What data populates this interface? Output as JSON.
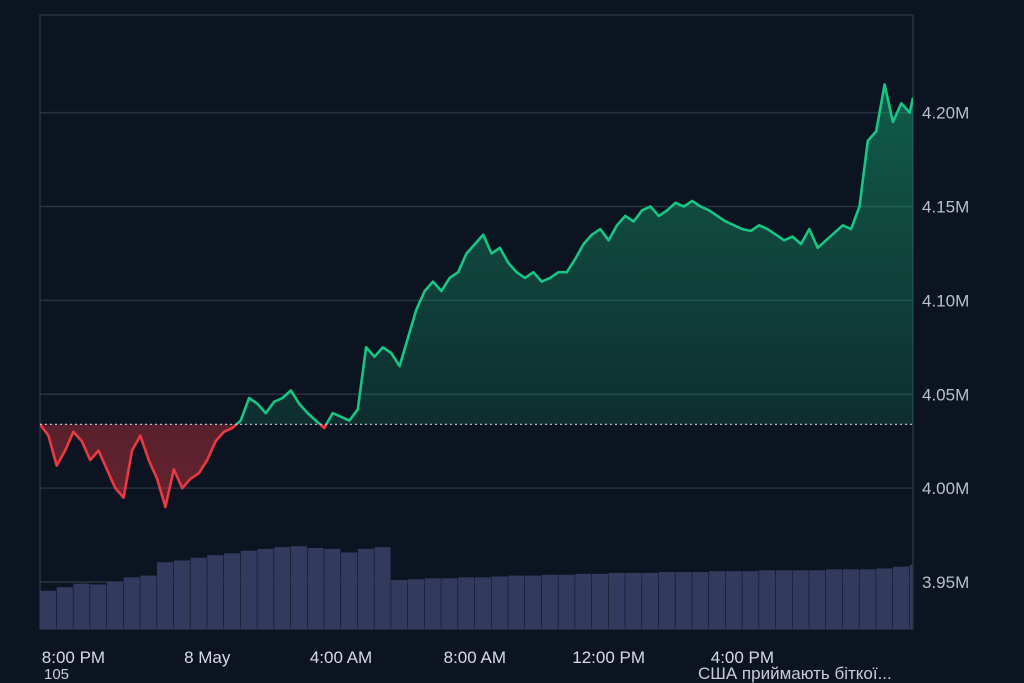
{
  "chart_data": {
    "type": "line",
    "title": "",
    "xlabel": "",
    "ylabel": "",
    "x_tick_labels": [
      "8:00 PM",
      "8 May",
      "4:00 AM",
      "8:00 AM",
      "12:00 PM",
      "4:00 PM"
    ],
    "x_tick_hours": [
      0,
      4,
      8,
      12,
      16,
      20
    ],
    "x_range_hours": [
      -1,
      25.1
    ],
    "y_tick_labels": [
      "3.95M",
      "4.00M",
      "4.05M",
      "4.10M",
      "4.15M",
      "4.20M"
    ],
    "y_ticks": [
      3.95,
      4.0,
      4.05,
      4.1,
      4.15,
      4.2
    ],
    "ylim": [
      3.925,
      4.252
    ],
    "baseline": 4.034,
    "grid": true,
    "colors": {
      "up": "#16c784",
      "down": "#ea3943",
      "volume": "#323a5e",
      "grid": "#2a3240",
      "background": "#0d1421"
    },
    "series": [
      {
        "x": [
          -1.0,
          -0.75,
          -0.5,
          -0.25,
          0.0,
          0.25,
          0.5,
          0.75,
          1.0,
          1.25,
          1.5,
          1.75,
          2.0,
          2.25,
          2.5,
          2.75,
          3.0,
          3.25,
          3.5,
          3.75,
          4.0,
          4.25,
          4.5,
          4.75,
          5.0,
          5.25,
          5.5,
          5.75,
          6.0,
          6.25,
          6.5,
          6.75,
          7.0,
          7.25,
          7.5,
          7.75,
          8.0,
          8.25,
          8.5,
          8.75,
          9.0,
          9.25,
          9.5,
          9.75,
          10.0,
          10.25,
          10.5,
          10.75,
          11.0,
          11.25,
          11.5,
          11.75,
          12.0,
          12.25,
          12.5,
          12.75,
          13.0,
          13.25,
          13.5,
          13.75,
          14.0,
          14.25,
          14.5,
          14.75,
          15.0,
          15.25,
          15.5,
          15.75,
          16.0,
          16.25,
          16.5,
          16.75,
          17.0,
          17.25,
          17.5,
          17.75,
          18.0,
          18.25,
          18.5,
          18.75,
          19.0,
          19.25,
          19.5,
          19.75,
          20.0,
          20.25,
          20.5,
          20.75,
          21.0,
          21.25,
          21.5,
          21.75,
          22.0,
          22.25,
          22.5,
          22.75,
          23.0,
          23.25,
          23.5,
          23.75,
          24.0,
          24.25,
          24.5,
          24.75,
          25.0,
          25.1
        ],
        "y": [
          4.034,
          4.028,
          4.012,
          4.02,
          4.03,
          4.025,
          4.015,
          4.02,
          4.01,
          4.0,
          3.995,
          4.02,
          4.028,
          4.015,
          4.005,
          3.99,
          4.01,
          4.0,
          4.005,
          4.008,
          4.015,
          4.025,
          4.03,
          4.032,
          4.036,
          4.048,
          4.045,
          4.04,
          4.046,
          4.048,
          4.052,
          4.045,
          4.04,
          4.036,
          4.032,
          4.04,
          4.038,
          4.036,
          4.042,
          4.075,
          4.07,
          4.075,
          4.072,
          4.065,
          4.08,
          4.095,
          4.105,
          4.11,
          4.105,
          4.112,
          4.115,
          4.125,
          4.13,
          4.135,
          4.125,
          4.128,
          4.12,
          4.115,
          4.112,
          4.115,
          4.11,
          4.112,
          4.115,
          4.115,
          4.122,
          4.13,
          4.135,
          4.138,
          4.132,
          4.14,
          4.145,
          4.142,
          4.148,
          4.15,
          4.145,
          4.148,
          4.152,
          4.15,
          4.153,
          4.15,
          4.148,
          4.145,
          4.142,
          4.14,
          4.138,
          4.137,
          4.14,
          4.138,
          4.135,
          4.132,
          4.134,
          4.13,
          4.138,
          4.128,
          4.132,
          4.136,
          4.14,
          4.138,
          4.15,
          4.185,
          4.19,
          4.215,
          4.195,
          4.205,
          4.2,
          4.208
        ]
      }
    ],
    "volume": {
      "x": [
        -1.0,
        -0.5,
        0.0,
        0.5,
        1.0,
        1.5,
        2.0,
        2.5,
        3.0,
        3.5,
        4.0,
        4.5,
        5.0,
        5.5,
        6.0,
        6.5,
        7.0,
        7.5,
        8.0,
        8.5,
        9.0,
        9.5,
        10.0,
        10.5,
        11.0,
        11.5,
        12.0,
        12.5,
        13.0,
        13.5,
        14.0,
        14.5,
        15.0,
        15.5,
        16.0,
        16.5,
        17.0,
        17.5,
        18.0,
        18.5,
        19.0,
        19.5,
        20.0,
        20.5,
        21.0,
        21.5,
        22.0,
        22.5,
        23.0,
        23.5,
        24.0,
        24.5,
        25.0
      ],
      "values": [
        0.43,
        0.47,
        0.51,
        0.5,
        0.53,
        0.58,
        0.6,
        0.75,
        0.77,
        0.8,
        0.83,
        0.85,
        0.88,
        0.9,
        0.92,
        0.93,
        0.91,
        0.9,
        0.86,
        0.9,
        0.92,
        0.55,
        0.56,
        0.57,
        0.57,
        0.58,
        0.58,
        0.59,
        0.6,
        0.6,
        0.61,
        0.61,
        0.62,
        0.62,
        0.63,
        0.63,
        0.63,
        0.64,
        0.64,
        0.64,
        0.65,
        0.65,
        0.65,
        0.66,
        0.66,
        0.66,
        0.66,
        0.67,
        0.67,
        0.67,
        0.68,
        0.7,
        0.72
      ]
    }
  },
  "footer": {
    "left_text": "105",
    "right_text": "США приймають біткої..."
  }
}
